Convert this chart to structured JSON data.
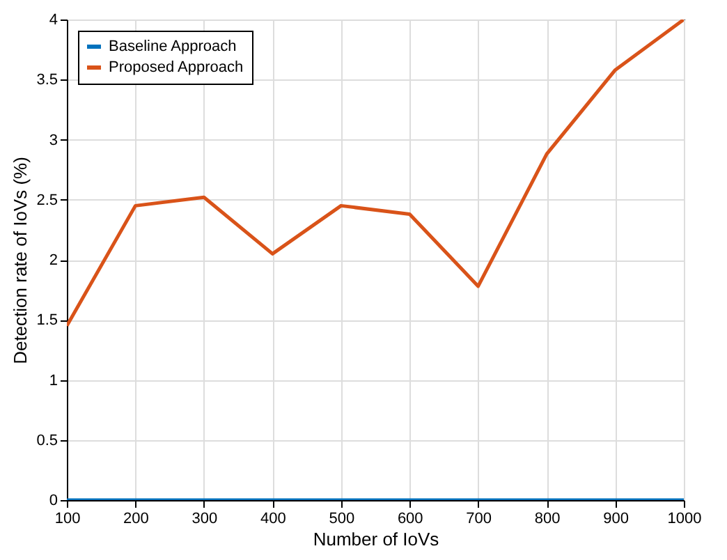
{
  "chart_data": {
    "type": "line",
    "xlabel": "Number of IoVs",
    "ylabel": "Detection rate of IoVs (%)",
    "x": [
      100,
      200,
      300,
      400,
      500,
      600,
      700,
      800,
      900,
      1000
    ],
    "series": [
      {
        "name": "Baseline Approach",
        "color": "#0072bd",
        "values": [
          0,
          0,
          0,
          0,
          0,
          0,
          0,
          0,
          0,
          0
        ]
      },
      {
        "name": "Proposed Approach",
        "color": "#d95319",
        "values": [
          1.45,
          2.45,
          2.52,
          2.05,
          2.45,
          2.38,
          1.78,
          2.88,
          3.58,
          4.0
        ]
      }
    ],
    "xlim": [
      100,
      1000
    ],
    "xticks": [
      100,
      200,
      300,
      400,
      500,
      600,
      700,
      800,
      900,
      1000
    ],
    "ylim": [
      0,
      4
    ],
    "yticks": [
      0,
      0.5,
      1,
      1.5,
      2,
      2.5,
      3,
      3.5,
      4
    ],
    "grid": true,
    "legend": "top left",
    "marker": "none",
    "line_style": "solid"
  }
}
